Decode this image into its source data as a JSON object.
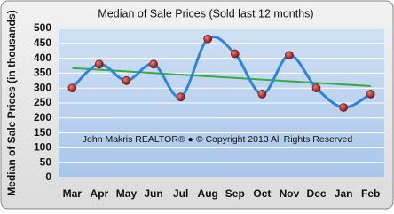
{
  "chart_data": {
    "type": "line",
    "title": "Median of Sale Prices (Sold last 12 months)",
    "y_label": "Median of Sale Prices (in thousands)",
    "annotation": "John Makris REALTOR® ● © Copyright 2013 All Rights Reserved",
    "categories": [
      "Mar",
      "Apr",
      "May",
      "Jun",
      "Jul",
      "Aug",
      "Sep",
      "Oct",
      "Nov",
      "Dec",
      "Jan",
      "Feb"
    ],
    "values": [
      300,
      380,
      325,
      380,
      270,
      465,
      415,
      280,
      410,
      300,
      235,
      280
    ],
    "color": "#2f86d8",
    "marker_color": "#8b1a1a",
    "trendline": true,
    "trendline_color": "#3aa84a",
    "ylim": [
      0,
      500
    ],
    "yticks": [
      0,
      50,
      100,
      150,
      200,
      250,
      300,
      350,
      400,
      450,
      500
    ],
    "grid": true
  }
}
